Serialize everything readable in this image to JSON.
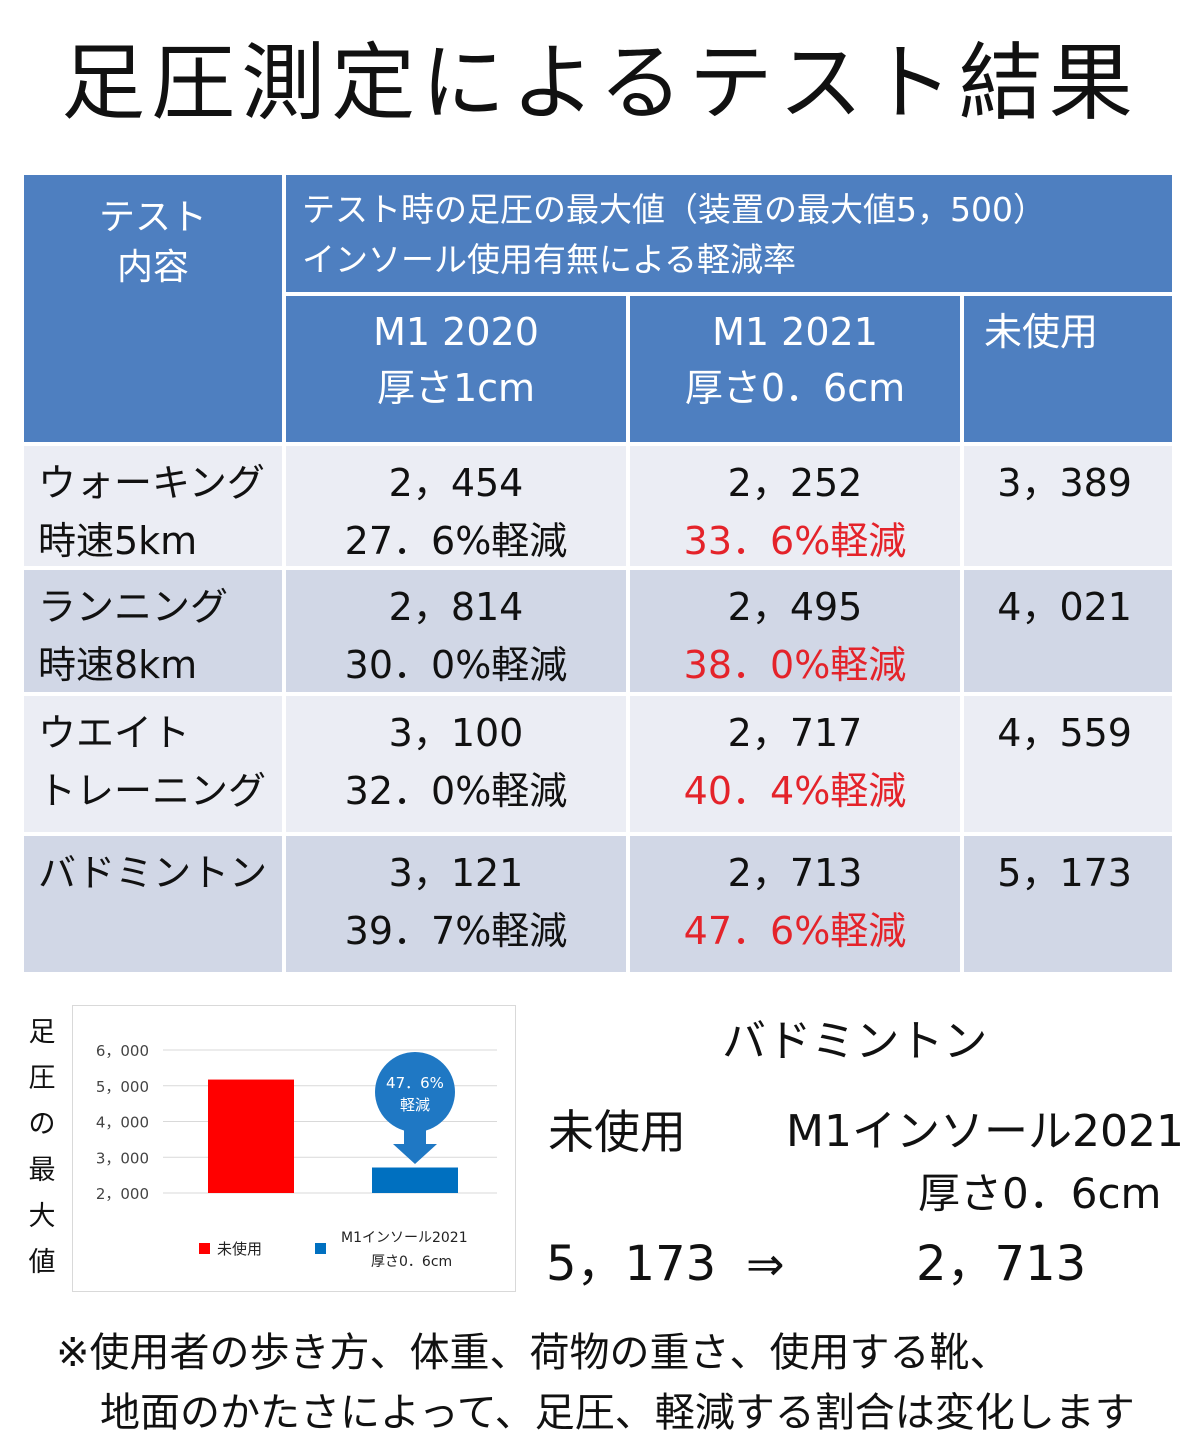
{
  "title": "足圧測定によるテスト結果",
  "table": {
    "header_test": [
      "テスト",
      "内容"
    ],
    "header_top": [
      "テスト時の足圧の最大値（装置の最大値5，500）",
      "インソール使用有無による軽減率"
    ],
    "col_m1_2020": [
      "M1 2020",
      "厚さ1cm"
    ],
    "col_m1_2021": [
      "M1 2021",
      "厚さ0．6cm"
    ],
    "col_unused": "未使用",
    "rows": [
      {
        "name": [
          "ウォーキング",
          "時速5km"
        ],
        "m2020_value": "2，454",
        "m2020_reduction": "27．6%軽減",
        "m2021_value": "2，252",
        "m2021_reduction": "33．6%軽減",
        "unused": "3，389"
      },
      {
        "name": [
          "ランニング",
          "時速8km"
        ],
        "m2020_value": "2，814",
        "m2020_reduction": "30．0%軽減",
        "m2021_value": "2，495",
        "m2021_reduction": "38．0%軽減",
        "unused": "4，021"
      },
      {
        "name": [
          "ウエイト",
          "トレーニング"
        ],
        "m2020_value": "3，100",
        "m2020_reduction": "32．0%軽減",
        "m2021_value": "2，717",
        "m2021_reduction": "40．4%軽減",
        "unused": "4，559"
      },
      {
        "name": [
          "バドミントン",
          ""
        ],
        "m2020_value": "3，121",
        "m2020_reduction": "39．7%軽減",
        "m2021_value": "2，713",
        "m2021_reduction": "47．6%軽減",
        "unused": "5，173"
      }
    ]
  },
  "chart_data": {
    "type": "bar",
    "ylabel": "足圧の最大値",
    "ylim": [
      2000,
      6000
    ],
    "yticks": [
      2000,
      3000,
      4000,
      5000,
      6000
    ],
    "ytick_labels": [
      "2，000",
      "3，000",
      "4，000",
      "5，000",
      "6，000"
    ],
    "grid": true,
    "legend": "bottom",
    "series": [
      {
        "name": "未使用",
        "value": 5173,
        "color": "#ff0000"
      },
      {
        "name": "M1インソール2021 厚さ0．6cm",
        "value": 2713,
        "color": "#0070c0"
      }
    ],
    "legend_labels": [
      "未使用",
      "M1インソール2021",
      "厚さ0．6cm"
    ],
    "callout": [
      "47．6%",
      "軽減"
    ],
    "callout_color": "#1f78c4"
  },
  "summary": {
    "title": "バドミントン",
    "unused_label": "未使用",
    "m1_label": "M1インソール2021",
    "thickness": "厚さ0．6cm",
    "unused_value": "5，173",
    "arrow": "⇒",
    "m1_value": "2，713"
  },
  "note": {
    "line1": "※使用者の歩き方、体重、荷物の重さ、使用する靴、",
    "line2": "地面のかたさによって、足圧、軽減する割合は変化します"
  }
}
